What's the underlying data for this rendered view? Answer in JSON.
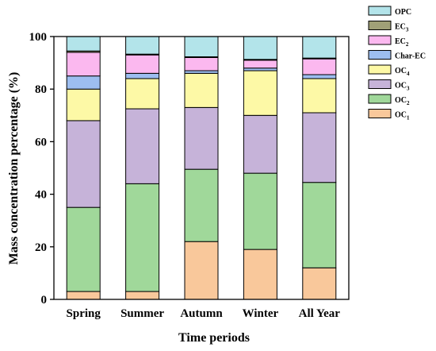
{
  "chart_data": {
    "type": "bar",
    "stacked": true,
    "categories": [
      "Spring",
      "Summer",
      "Autumn",
      "Winter",
      "All Year"
    ],
    "xlabel": "Time periods",
    "ylabel": "Mass concentration percentage (%)",
    "ylim": [
      0,
      100
    ],
    "yticks": [
      "0",
      "20",
      "40",
      "60",
      "80",
      "100"
    ],
    "grid": false,
    "legend_position": "top-right",
    "series": [
      {
        "name": "OC",
        "sub": "1",
        "color": "#f9c89b",
        "values": [
          3,
          3,
          22,
          19,
          12
        ]
      },
      {
        "name": "OC",
        "sub": "2",
        "color": "#a0d89a",
        "values": [
          32,
          41,
          27.5,
          29,
          32.5
        ]
      },
      {
        "name": "OC",
        "sub": "3",
        "color": "#c6b3d9",
        "values": [
          33,
          28.5,
          23.5,
          22,
          26.5
        ]
      },
      {
        "name": "OC",
        "sub": "4",
        "color": "#fdf9a6",
        "values": [
          12,
          11.5,
          13,
          17,
          13
        ]
      },
      {
        "name": "Char-EC",
        "sub": "",
        "color": "#9dbef0",
        "values": [
          5,
          2,
          1,
          1,
          1.5
        ]
      },
      {
        "name": "EC",
        "sub": "2",
        "color": "#fbb8ef",
        "values": [
          9,
          7,
          5,
          3,
          6
        ]
      },
      {
        "name": "EC",
        "sub": "3",
        "color": "#a0a077",
        "values": [
          0.5,
          0.3,
          0.3,
          0.3,
          0.3
        ]
      },
      {
        "name": "OPC",
        "sub": "",
        "color": "#b3e4ea",
        "values": [
          5.5,
          6.7,
          7.7,
          8.7,
          8.2
        ]
      }
    ]
  }
}
